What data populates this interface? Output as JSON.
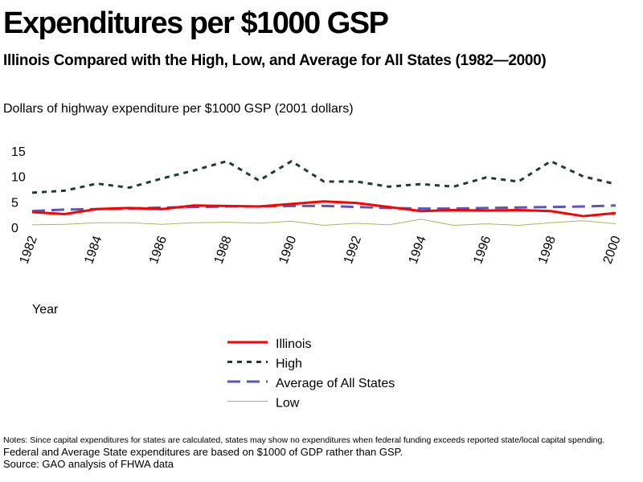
{
  "header": {
    "title": "Expenditures per $1000 GSP",
    "subtitle": "Illinois Compared with the High, Low, and Average for All States (1982—2000)",
    "ylabel": "Dollars of highway expenditure per $1000 GSP  (2001 dollars)"
  },
  "notes": {
    "line1": "Notes: Since capital expenditures for states are calculated, states may show no expenditures when federal funding exceeds reported state/local capital spending.",
    "line2": "Federal and Average State expenditures are based on $1000 of GDP rather than GSP.",
    "line3": "Source: GAO  analysis of FHWA data"
  },
  "chart_data": {
    "type": "line",
    "title": "Expenditures per $1000 GSP",
    "xlabel": "Year",
    "ylabel": "Dollars of highway expenditure per $1000 GSP  (2001 dollars)",
    "x": [
      1982,
      1983,
      1984,
      1985,
      1986,
      1987,
      1988,
      1989,
      1990,
      1991,
      1992,
      1993,
      1994,
      1995,
      1996,
      1997,
      1998,
      1999,
      2000
    ],
    "x_tick_labels": [
      "1982",
      "1984",
      "1986",
      "1988",
      "1990",
      "1992",
      "1994",
      "1996",
      "1998",
      "2000"
    ],
    "y_ticks": [
      0,
      5,
      10,
      15
    ],
    "ylim": [
      0,
      15
    ],
    "xlim": [
      1982,
      2000
    ],
    "grid": false,
    "legend_position": "bottom",
    "series": [
      {
        "name": "Illinois",
        "color": "#ff0000",
        "dash": "solid",
        "values": [
          3.0,
          2.6,
          3.6,
          3.8,
          3.6,
          4.3,
          4.2,
          4.1,
          4.6,
          5.1,
          4.8,
          4.0,
          3.2,
          3.4,
          3.3,
          3.4,
          3.2,
          2.2,
          2.8
        ]
      },
      {
        "name": "High",
        "color": "#1e3d2e",
        "dash": "dotted",
        "values": [
          6.8,
          7.2,
          8.6,
          7.8,
          9.6,
          11.2,
          13.0,
          9.2,
          13.0,
          9.0,
          9.0,
          8.0,
          8.5,
          8.0,
          9.8,
          9.0,
          13.0,
          10.0,
          8.5
        ]
      },
      {
        "name": "Average of All States",
        "color": "#5d55b8",
        "dash": "dashed",
        "values": [
          3.2,
          3.5,
          3.6,
          3.7,
          3.9,
          4.0,
          4.1,
          4.1,
          4.2,
          4.2,
          4.0,
          3.8,
          3.7,
          3.7,
          3.8,
          3.9,
          4.0,
          4.1,
          4.3
        ]
      },
      {
        "name": "Low",
        "color": "#a8b85a",
        "dash": "solid",
        "values": [
          0.5,
          0.6,
          0.9,
          0.9,
          0.6,
          0.9,
          1.0,
          0.8,
          1.2,
          0.4,
          0.8,
          0.5,
          1.6,
          0.4,
          0.7,
          0.4,
          0.9,
          1.3,
          0.7
        ]
      }
    ]
  }
}
